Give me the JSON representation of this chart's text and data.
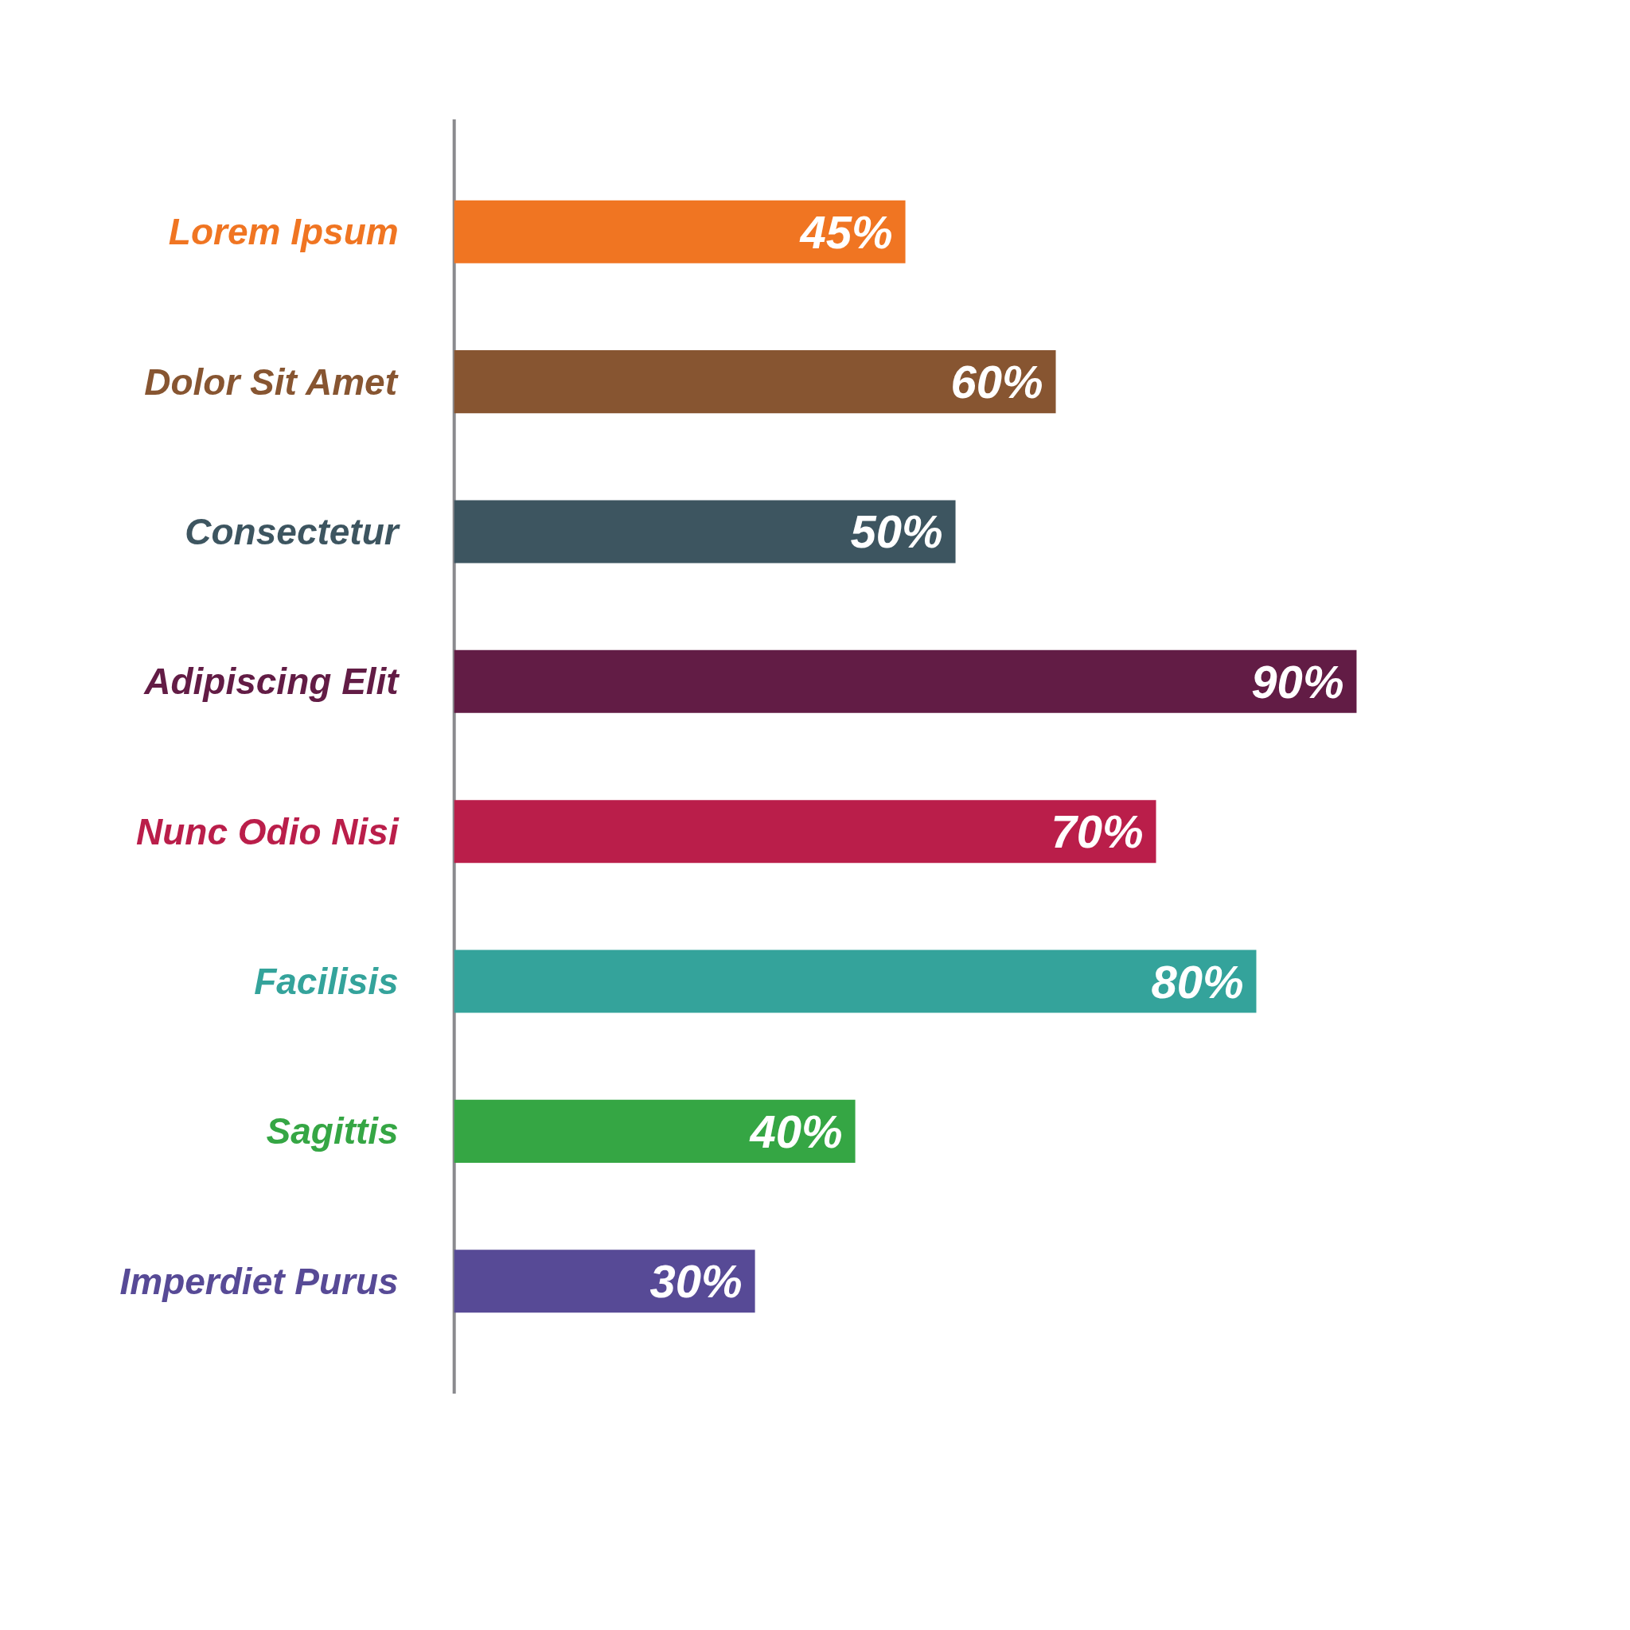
{
  "chart_data": {
    "type": "bar",
    "orientation": "horizontal",
    "categories": [
      "Lorem Ipsum",
      "Dolor Sit Amet",
      "Consectetur",
      "Adipiscing Elit",
      "Nunc Odio Nisi",
      "Facilisis",
      "Sagittis",
      "Imperdiet Purus"
    ],
    "values": [
      45,
      60,
      50,
      90,
      70,
      80,
      40,
      30
    ],
    "colors": [
      "#f07522",
      "#875531",
      "#3d5560",
      "#621c45",
      "#ba1e4a",
      "#34a39b",
      "#35a644",
      "#574a96"
    ],
    "value_labels": [
      "45%",
      "60%",
      "50%",
      "90%",
      "70%",
      "80%",
      "40%",
      "30%"
    ]
  }
}
